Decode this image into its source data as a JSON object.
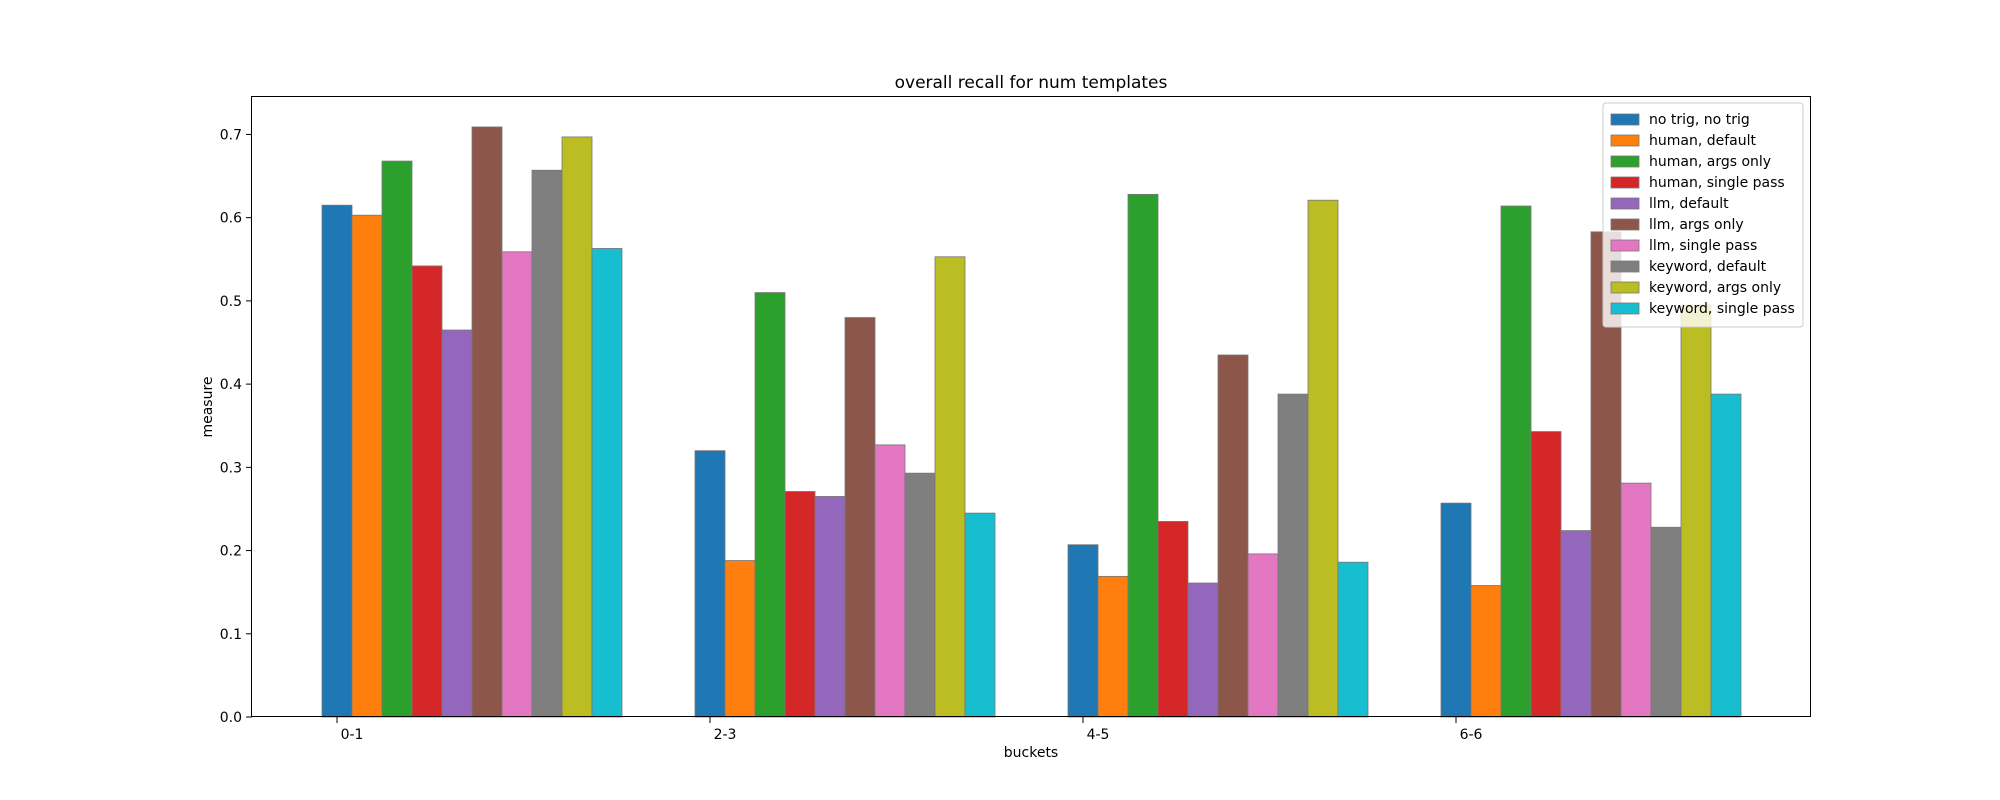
{
  "chart_data": {
    "type": "bar",
    "title": "overall recall for num templates",
    "xlabel": "buckets",
    "ylabel": "measure",
    "categories": [
      "0-1",
      "2-3",
      "4-5",
      "6-6"
    ],
    "ylim": [
      0,
      0.745
    ],
    "yticks": [
      "0.0",
      "0.1",
      "0.2",
      "0.3",
      "0.4",
      "0.5",
      "0.6",
      "0.7"
    ],
    "grid": false,
    "legend_position": "top-right",
    "series": [
      {
        "name": "no trig, no trig",
        "color": "#1f77b4",
        "values": [
          0.615,
          0.32,
          0.207,
          0.257
        ]
      },
      {
        "name": "human, default",
        "color": "#ff7f0e",
        "values": [
          0.603,
          0.188,
          0.169,
          0.158
        ]
      },
      {
        "name": "human, args only",
        "color": "#2ca02c",
        "values": [
          0.668,
          0.51,
          0.628,
          0.614
        ]
      },
      {
        "name": "human, single pass",
        "color": "#d62728",
        "values": [
          0.542,
          0.271,
          0.235,
          0.343
        ]
      },
      {
        "name": "llm, default",
        "color": "#9467bd",
        "values": [
          0.465,
          0.265,
          0.161,
          0.224
        ]
      },
      {
        "name": "llm, args only",
        "color": "#8c564b",
        "values": [
          0.709,
          0.48,
          0.435,
          0.583
        ]
      },
      {
        "name": "llm, single pass",
        "color": "#e377c2",
        "values": [
          0.559,
          0.327,
          0.196,
          0.281
        ]
      },
      {
        "name": "keyword, default",
        "color": "#7f7f7f",
        "values": [
          0.657,
          0.293,
          0.388,
          0.228
        ]
      },
      {
        "name": "keyword, args only",
        "color": "#bcbd22",
        "values": [
          0.697,
          0.553,
          0.621,
          0.495
        ]
      },
      {
        "name": "keyword, single pass",
        "color": "#17becf",
        "values": [
          0.563,
          0.245,
          0.186,
          0.388
        ]
      }
    ]
  }
}
